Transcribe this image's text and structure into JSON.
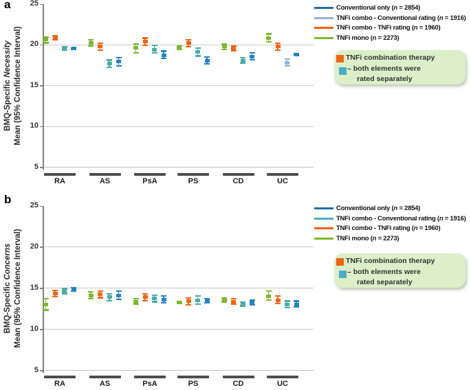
{
  "figure": {
    "panels": [
      {
        "id": "a",
        "panel_label": "a",
        "ylabel": {
          "prefix": "BMQ-Specific ",
          "emphasis": "Necessity",
          "line2": "Mean (95% Confidence Interval)"
        },
        "legend": {
          "items": [
            {
              "name": "Conventional only (",
              "n": "n",
              "rest": " = 2854)",
              "color": "#1F6FA8"
            },
            {
              "name": "TNFi combo - Conventional rating (",
              "n": "n",
              "rest": " = 1916)",
              "color": "#95B3D7"
            },
            {
              "name": "TNFi combo - TNFi rating (",
              "n": "n",
              "rest": " = 1960)",
              "color": "#F0640E"
            },
            {
              "name": "TNFi mono (",
              "n": "n",
              "rest": " = 2273)",
              "color": "#7CB82A"
            }
          ]
        },
        "note_box": {
          "line1": "TNFi combination therapy",
          "line2": "– both elements were",
          "line3": "rated separately",
          "square1_color": "#F0640E",
          "square2_color": "#4BACC6",
          "background": "#DCEFC9"
        }
      },
      {
        "id": "b",
        "panel_label": "b",
        "ylabel": {
          "prefix": "BMQ-Specific ",
          "emphasis": "Concerns",
          "line2": "Mean (95% Confidence Interval)"
        },
        "legend": {
          "items": [
            {
              "name": "Conventional only (",
              "n": "n",
              "rest": " = 2854)",
              "color": "#1F6FA8"
            },
            {
              "name": "TNFi combo - Conventional rating (",
              "n": "n",
              "rest": " = 1916)",
              "color": "#4BACC6"
            },
            {
              "name": "TNFi combo - TNFi rating (",
              "n": "n",
              "rest": " = 1960)",
              "color": "#F0640E"
            },
            {
              "name": "TNFi mono (",
              "n": "n",
              "rest": " = 2273)",
              "color": "#7CB82A"
            }
          ]
        },
        "note_box": {
          "line1": "TNFi combination therapy",
          "line2": "– both elements were",
          "line3": "rated separately",
          "square1_color": "#F0640E",
          "square2_color": "#4BACC6",
          "background": "#DCEFC9"
        }
      }
    ]
  },
  "chart_data": [
    {
      "type": "errorbar",
      "panel": "a",
      "title": "",
      "ylabel": "BMQ-Specific Necessity Mean (95% Confidence Interval)",
      "xlabel": "",
      "ylim": [
        5,
        25
      ],
      "yticks": [
        25,
        20,
        15,
        10,
        5
      ],
      "gridlines": [
        20,
        15,
        10
      ],
      "legend_position": "right",
      "categories": [
        "RA",
        "AS",
        "PsA",
        "PS",
        "CD",
        "UC"
      ],
      "series": [
        {
          "name": "TNFi mono (n = 2273)",
          "color": "#7CB82A",
          "means": [
            20.6,
            20.2,
            19.6,
            19.6,
            19.8,
            20.8
          ],
          "ci_low": [
            20.2,
            19.8,
            19.0,
            19.4,
            19.4,
            20.3
          ],
          "ci_high": [
            20.9,
            20.6,
            20.1,
            19.8,
            20.1,
            21.3
          ]
        },
        {
          "name": "TNFi combo - TNFi rating (n = 1960)",
          "color": "#F0640E",
          "means": [
            20.8,
            19.8,
            20.4,
            20.2,
            19.5,
            19.8
          ],
          "ci_low": [
            20.6,
            19.3,
            19.9,
            19.7,
            19.2,
            19.3
          ],
          "ci_high": [
            21.1,
            20.2,
            20.8,
            20.6,
            19.8,
            20.2
          ]
        },
        {
          "name": "TNFi combo - Conventional rating (n = 1916)",
          "color": "#4AACA8",
          "point_color_overrides": {
            "UC": "#95B3D7"
          },
          "means": [
            19.5,
            17.7,
            19.4,
            19.1,
            18.0,
            17.8
          ],
          "ci_low": [
            19.3,
            17.2,
            19.0,
            18.6,
            17.7,
            17.4
          ],
          "ci_high": [
            19.7,
            18.1,
            19.9,
            19.6,
            18.4,
            18.2
          ]
        },
        {
          "name": "Conventional only (n = 2854)",
          "color": "#2383C4",
          "means": [
            19.5,
            17.9,
            18.7,
            18.0,
            18.5,
            18.8
          ],
          "ci_low": [
            19.4,
            17.4,
            18.3,
            17.6,
            18.1,
            18.7
          ],
          "ci_high": [
            19.6,
            18.4,
            19.2,
            18.5,
            19.0,
            18.9
          ]
        }
      ]
    },
    {
      "type": "errorbar",
      "panel": "b",
      "title": "",
      "ylabel": "BMQ-Specific Concerns Mean (95% Confidence Interval)",
      "xlabel": "",
      "ylim": [
        5,
        25
      ],
      "yticks": [
        25,
        20,
        15,
        10,
        5
      ],
      "gridlines": [
        20,
        15,
        10
      ],
      "legend_position": "right",
      "categories": [
        "RA",
        "AS",
        "PsA",
        "PS",
        "CD",
        "UC"
      ],
      "series": [
        {
          "name": "TNFi mono (n = 2273)",
          "color": "#7CB82A",
          "means": [
            13.0,
            14.1,
            13.3,
            13.2,
            13.5,
            14.0
          ],
          "ci_low": [
            12.3,
            13.7,
            13.0,
            13.1,
            13.3,
            13.5
          ],
          "ci_high": [
            13.7,
            14.5,
            13.7,
            13.3,
            13.8,
            14.6
          ]
        },
        {
          "name": "TNFi combo - TNFi rating (n = 1960)",
          "color": "#F0640E",
          "means": [
            14.3,
            14.2,
            13.9,
            13.4,
            13.3,
            13.5
          ],
          "ci_low": [
            13.9,
            13.8,
            13.4,
            12.9,
            13.0,
            13.1
          ],
          "ci_high": [
            14.7,
            14.6,
            14.3,
            13.8,
            13.7,
            14.0
          ]
        },
        {
          "name": "TNFi combo - Conventional rating (n = 1916)",
          "color": "#4AACA8",
          "means": [
            14.6,
            13.9,
            13.7,
            13.5,
            13.0,
            13.0
          ],
          "ci_low": [
            14.3,
            13.4,
            13.3,
            13.0,
            12.8,
            12.6
          ],
          "ci_high": [
            14.9,
            14.3,
            14.1,
            14.0,
            13.3,
            13.4
          ]
        },
        {
          "name": "Conventional only (n = 2854)",
          "color": "#2383C4",
          "means": [
            14.8,
            14.1,
            13.6,
            13.4,
            13.2,
            13.0
          ],
          "ci_low": [
            14.6,
            13.6,
            13.2,
            13.2,
            12.9,
            12.7
          ],
          "ci_high": [
            15.0,
            14.6,
            14.0,
            13.7,
            13.5,
            13.4
          ]
        }
      ]
    }
  ]
}
